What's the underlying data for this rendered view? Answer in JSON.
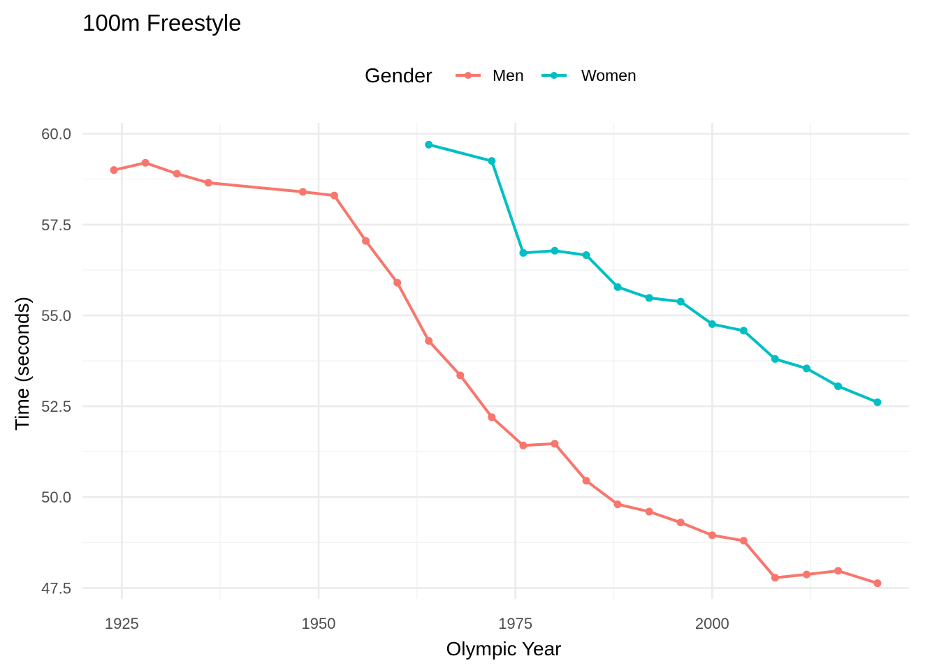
{
  "chart_data": {
    "type": "line",
    "title": "100m Freestyle",
    "xlabel": "Olympic Year",
    "ylabel": "Time (seconds)",
    "xlim": [
      1920,
      2025
    ],
    "ylim": [
      47.2,
      60.3
    ],
    "x_ticks": [
      1925,
      1950,
      1975,
      2000
    ],
    "x_tick_labels": [
      "1925",
      "1950",
      "1975",
      "2000"
    ],
    "y_ticks": [
      47.5,
      50.0,
      52.5,
      55.0,
      57.5,
      60.0
    ],
    "y_tick_labels": [
      "47.5",
      "50.0",
      "52.5",
      "55.0",
      "57.5",
      "60.0"
    ],
    "grid": true,
    "legend": {
      "title": "Gender",
      "position": "top"
    },
    "series": [
      {
        "name": "Men",
        "color": "#F8766D",
        "x": [
          1924,
          1928,
          1932,
          1936,
          1948,
          1952,
          1956,
          1960,
          1964,
          1968,
          1972,
          1976,
          1980,
          1984,
          1988,
          1992,
          1996,
          2000,
          2004,
          2008,
          2012,
          2016,
          2021
        ],
        "values": [
          59.0,
          59.2,
          58.9,
          58.65,
          58.4,
          58.3,
          57.05,
          55.9,
          54.3,
          53.35,
          52.2,
          51.42,
          51.47,
          50.45,
          49.8,
          49.6,
          49.3,
          48.95,
          48.8,
          47.78,
          47.87,
          47.97,
          47.63
        ]
      },
      {
        "name": "Women",
        "color": "#00BFC4",
        "x": [
          1964,
          1972,
          1976,
          1980,
          1984,
          1988,
          1992,
          1996,
          2000,
          2004,
          2008,
          2012,
          2016,
          2021
        ],
        "values": [
          59.7,
          59.25,
          56.72,
          56.78,
          56.66,
          55.78,
          55.48,
          55.38,
          54.76,
          54.58,
          53.8,
          53.54,
          53.05,
          52.61
        ]
      }
    ]
  }
}
